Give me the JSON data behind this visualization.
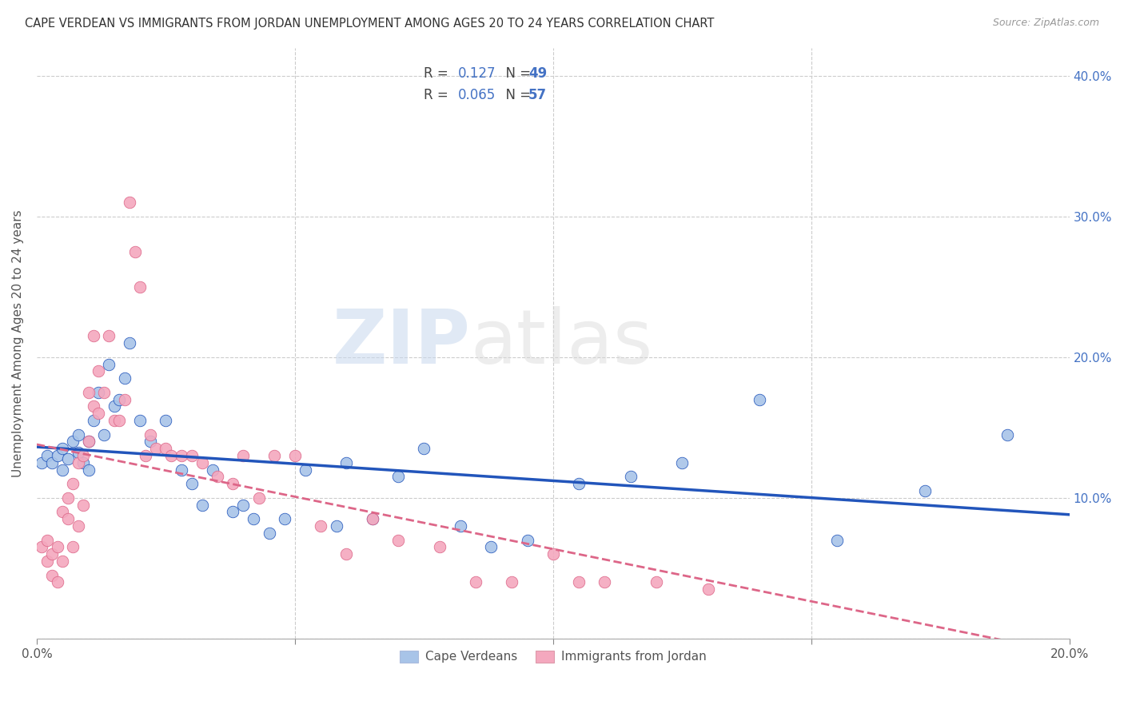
{
  "title": "CAPE VERDEAN VS IMMIGRANTS FROM JORDAN UNEMPLOYMENT AMONG AGES 20 TO 24 YEARS CORRELATION CHART",
  "source": "Source: ZipAtlas.com",
  "ylabel": "Unemployment Among Ages 20 to 24 years",
  "xmin": 0.0,
  "xmax": 0.2,
  "ymin": 0.0,
  "ymax": 0.42,
  "color_blue": "#a8c4e8",
  "color_pink": "#f4a8be",
  "line_color_blue": "#2255bb",
  "line_color_pink": "#dd6688",
  "watermark_zip": "ZIP",
  "watermark_atlas": "atlas",
  "series1_label": "Cape Verdeans",
  "series2_label": "Immigrants from Jordan",
  "legend_r1": "0.127",
  "legend_n1": "49",
  "legend_r2": "0.065",
  "legend_n2": "57",
  "blue_x": [
    0.001,
    0.002,
    0.003,
    0.004,
    0.005,
    0.005,
    0.006,
    0.007,
    0.008,
    0.008,
    0.009,
    0.01,
    0.01,
    0.011,
    0.012,
    0.013,
    0.014,
    0.015,
    0.016,
    0.017,
    0.018,
    0.02,
    0.022,
    0.025,
    0.028,
    0.03,
    0.032,
    0.034,
    0.038,
    0.04,
    0.042,
    0.045,
    0.048,
    0.052,
    0.058,
    0.06,
    0.065,
    0.07,
    0.075,
    0.082,
    0.088,
    0.095,
    0.105,
    0.115,
    0.125,
    0.14,
    0.155,
    0.172,
    0.188
  ],
  "blue_y": [
    0.125,
    0.13,
    0.125,
    0.13,
    0.12,
    0.135,
    0.128,
    0.14,
    0.132,
    0.145,
    0.125,
    0.14,
    0.12,
    0.155,
    0.175,
    0.145,
    0.195,
    0.165,
    0.17,
    0.185,
    0.21,
    0.155,
    0.14,
    0.155,
    0.12,
    0.11,
    0.095,
    0.12,
    0.09,
    0.095,
    0.085,
    0.075,
    0.085,
    0.12,
    0.08,
    0.125,
    0.085,
    0.115,
    0.135,
    0.08,
    0.065,
    0.07,
    0.11,
    0.115,
    0.125,
    0.17,
    0.07,
    0.105,
    0.145
  ],
  "pink_x": [
    0.001,
    0.002,
    0.002,
    0.003,
    0.003,
    0.004,
    0.004,
    0.005,
    0.005,
    0.006,
    0.006,
    0.007,
    0.007,
    0.008,
    0.008,
    0.009,
    0.009,
    0.01,
    0.01,
    0.011,
    0.011,
    0.012,
    0.012,
    0.013,
    0.014,
    0.015,
    0.016,
    0.017,
    0.018,
    0.019,
    0.02,
    0.021,
    0.022,
    0.023,
    0.025,
    0.026,
    0.028,
    0.03,
    0.032,
    0.035,
    0.038,
    0.04,
    0.043,
    0.046,
    0.05,
    0.055,
    0.06,
    0.065,
    0.07,
    0.078,
    0.085,
    0.092,
    0.1,
    0.105,
    0.11,
    0.12,
    0.13
  ],
  "pink_y": [
    0.065,
    0.055,
    0.07,
    0.045,
    0.06,
    0.065,
    0.04,
    0.055,
    0.09,
    0.085,
    0.1,
    0.065,
    0.11,
    0.125,
    0.08,
    0.095,
    0.13,
    0.14,
    0.175,
    0.165,
    0.215,
    0.19,
    0.16,
    0.175,
    0.215,
    0.155,
    0.155,
    0.17,
    0.31,
    0.275,
    0.25,
    0.13,
    0.145,
    0.135,
    0.135,
    0.13,
    0.13,
    0.13,
    0.125,
    0.115,
    0.11,
    0.13,
    0.1,
    0.13,
    0.13,
    0.08,
    0.06,
    0.085,
    0.07,
    0.065,
    0.04,
    0.04,
    0.06,
    0.04,
    0.04,
    0.04,
    0.035
  ]
}
